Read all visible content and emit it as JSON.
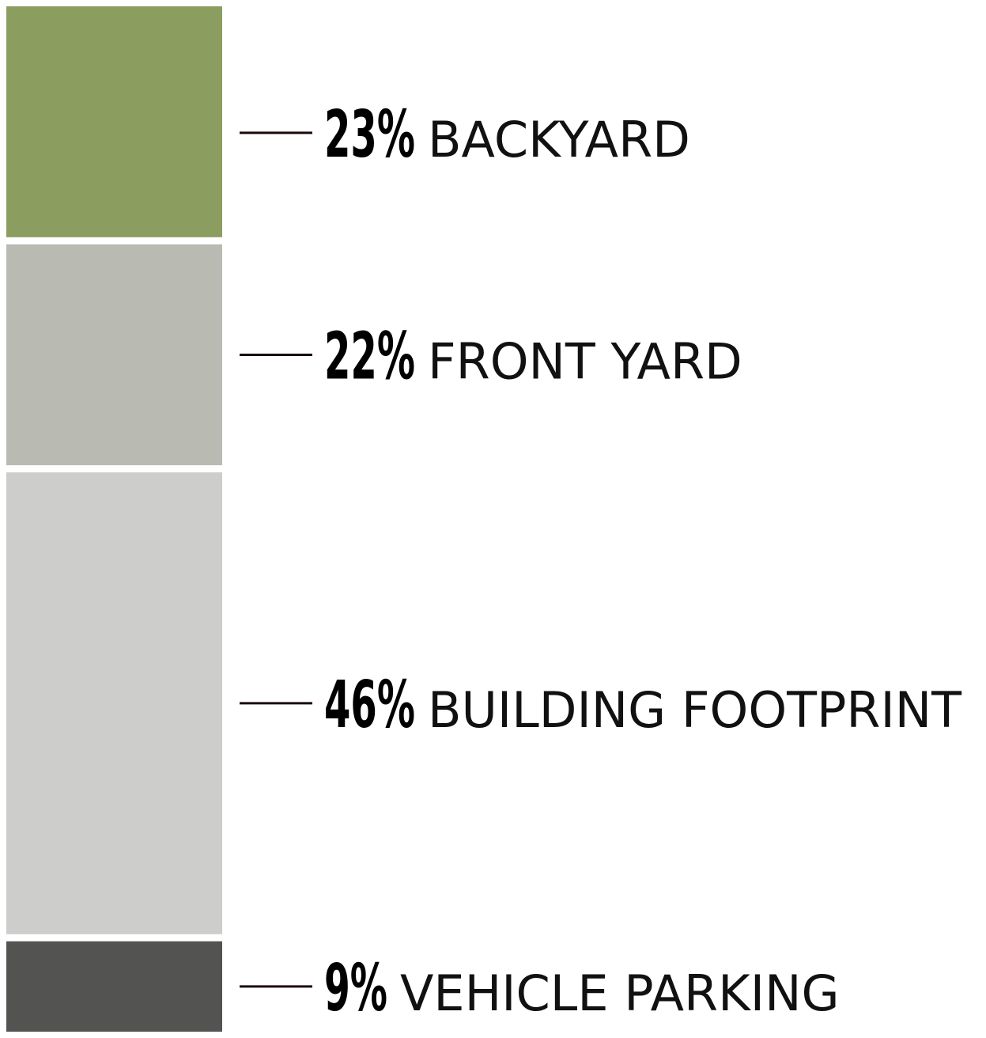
{
  "chart_data": {
    "type": "stacked-bar",
    "orientation": "vertical",
    "unit": "%",
    "segments": [
      {
        "label": "BACKYARD",
        "value": 23,
        "value_label": "23%",
        "color": "#8B9E5F"
      },
      {
        "label": "FRONT YARD",
        "value": 22,
        "value_label": "22%",
        "color": "#B9BBB2"
      },
      {
        "label": "BUILDING FOOTPRINT",
        "value": 46,
        "value_label": "46%",
        "color": "#CDCDCB"
      },
      {
        "label": "VEHICLE PARKING",
        "value": 9,
        "value_label": "9%",
        "color": "#535352"
      }
    ],
    "leader_line_color": "#1A0A0A",
    "background": "#FFFFFF",
    "title": "",
    "xlabel": "",
    "ylabel": ""
  }
}
